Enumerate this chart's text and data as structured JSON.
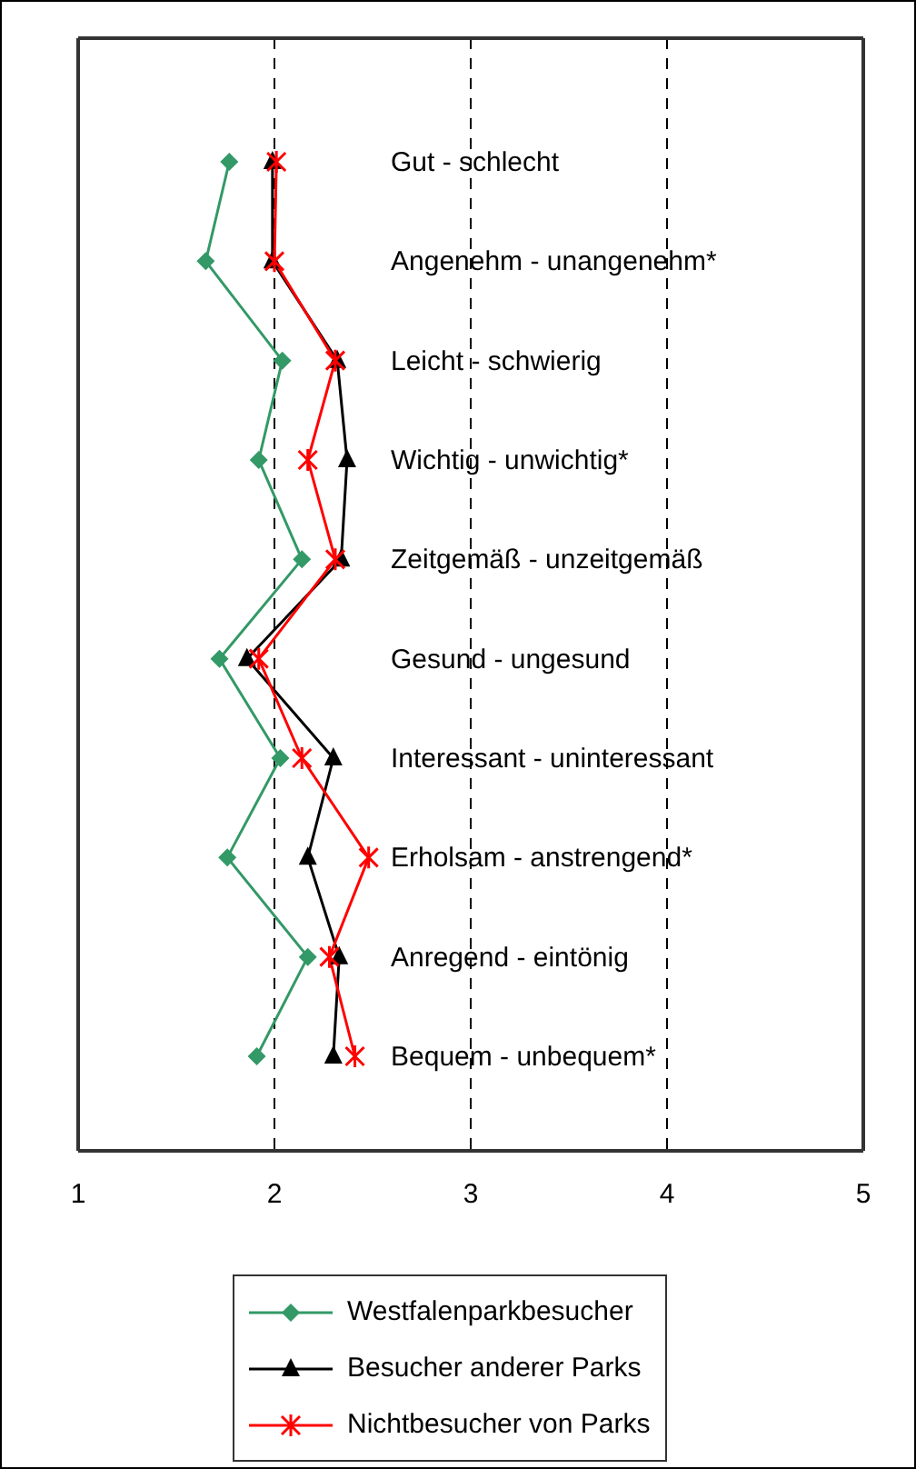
{
  "chart_data": {
    "type": "line",
    "orientation": "horizontal",
    "categories": [
      "Gut - schlecht",
      "Angenehm - unangenehm*",
      "Leicht - schwierig",
      "Wichtig - unwichtig*",
      "Zeitgemäß - unzeitgemäß",
      "Gesund - ungesund",
      "Interessant - uninteressant",
      "Erholsam - anstrengend*",
      "Anregend - eintönig",
      "Bequem - unbequem*"
    ],
    "series": [
      {
        "name": "Westfalenparkbesucher",
        "color": "#339966",
        "marker": "diamond",
        "values": [
          1.77,
          1.65,
          2.04,
          1.92,
          2.14,
          1.72,
          2.03,
          1.76,
          2.17,
          1.91
        ]
      },
      {
        "name": "Besucher anderer Parks",
        "color": "#000000",
        "marker": "triangle",
        "values": [
          1.99,
          1.99,
          2.32,
          2.37,
          2.34,
          1.86,
          2.3,
          2.17,
          2.33,
          2.3
        ]
      },
      {
        "name": "Nichtbesucher von Parks",
        "color": "#ff0000",
        "marker": "cross",
        "values": [
          2.01,
          2.0,
          2.31,
          2.17,
          2.31,
          1.92,
          2.14,
          2.48,
          2.28,
          2.41
        ]
      }
    ],
    "xlim": [
      1,
      5
    ],
    "xticks": [
      1,
      2,
      3,
      4,
      5
    ],
    "grid": "x",
    "legend": "bottom"
  }
}
